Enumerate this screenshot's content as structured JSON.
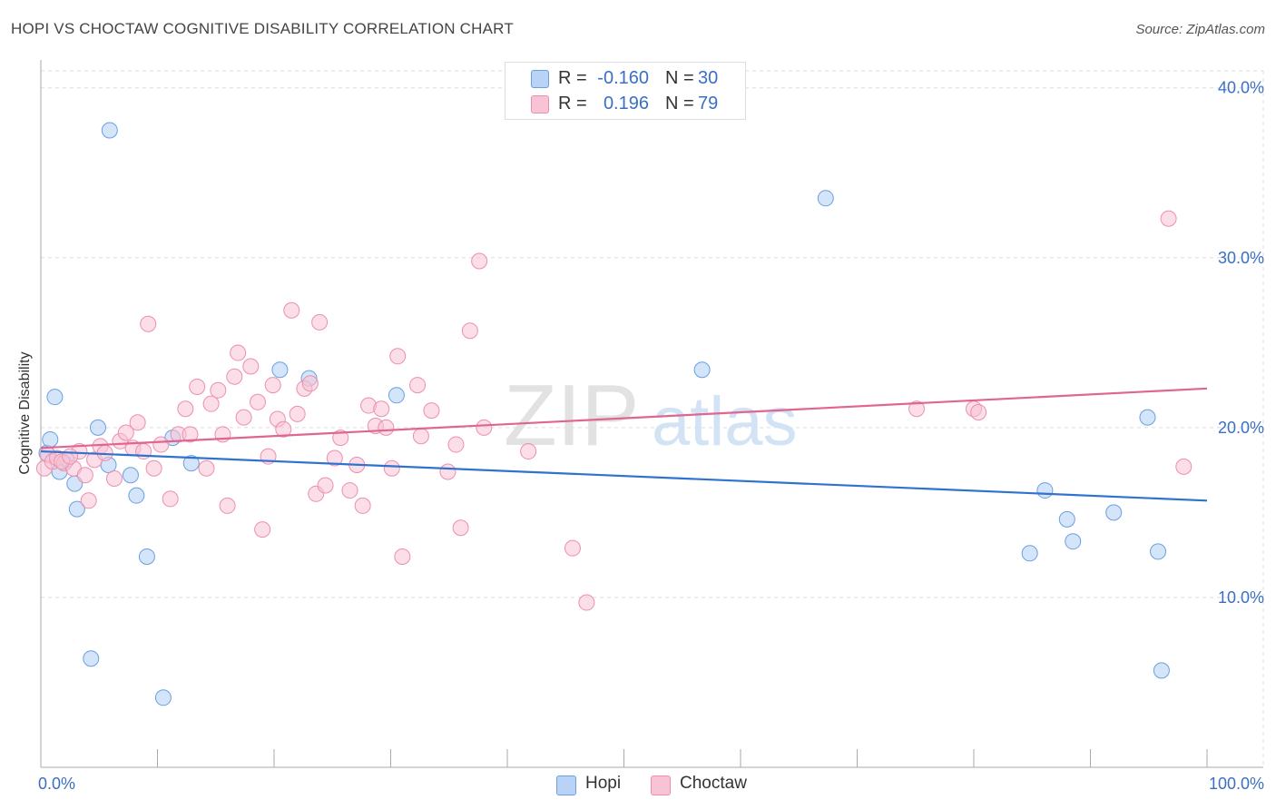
{
  "title": "HOPI VS CHOCTAW COGNITIVE DISABILITY CORRELATION CHART",
  "source": "Source: ZipAtlas.com",
  "watermark": {
    "zip": "ZIP",
    "atlas": "atlas"
  },
  "legend": {
    "rows": [
      {
        "r_label": "R =",
        "r_value": "-0.160",
        "n_label": "N =",
        "n_value": "30"
      },
      {
        "r_label": "R =",
        "r_value": "0.196",
        "n_label": "N =",
        "n_value": "79"
      }
    ]
  },
  "bottom_legend": {
    "hopi": "Hopi",
    "choctaw": "Choctaw"
  },
  "colors": {
    "hopi_fill": "#b8d3f5",
    "hopi_stroke": "#6a9fe0",
    "hopi_line": "#2f72d0",
    "choctaw_fill": "#f8c3d4",
    "choctaw_stroke": "#ec8fae",
    "choctaw_line": "#e0658f",
    "axis_label": "#3a6fc4",
    "grid": "#dddddd"
  },
  "chart_data": {
    "type": "scatter",
    "title": "HOPI VS CHOCTAW COGNITIVE DISABILITY CORRELATION CHART",
    "xlabel": "",
    "ylabel": "Cognitive Disability",
    "xlim": [
      0,
      100
    ],
    "ylim": [
      0,
      40.0
    ],
    "x_tick_labels": [
      "0.0%",
      "100.0%"
    ],
    "y_ticks": [
      10,
      20,
      30,
      40
    ],
    "y_tick_labels": [
      "10.0%",
      "20.0%",
      "30.0%",
      "40.0%"
    ],
    "grid": true,
    "series": [
      {
        "name": "Hopi",
        "R": -0.16,
        "N": 30,
        "trend": {
          "x": [
            0,
            100
          ],
          "y": [
            18.6,
            15.7
          ]
        },
        "points": [
          [
            0.5,
            18.5
          ],
          [
            0.8,
            19.3
          ],
          [
            1.2,
            21.8
          ],
          [
            1.6,
            17.4
          ],
          [
            2.2,
            18.1
          ],
          [
            2.9,
            16.7
          ],
          [
            3.1,
            15.2
          ],
          [
            4.3,
            6.4
          ],
          [
            4.9,
            20.0
          ],
          [
            5.8,
            17.8
          ],
          [
            7.7,
            17.2
          ],
          [
            8.2,
            16.0
          ],
          [
            9.1,
            12.4
          ],
          [
            10.5,
            4.1
          ],
          [
            11.3,
            19.4
          ],
          [
            12.9,
            17.9
          ],
          [
            5.9,
            37.5
          ],
          [
            20.5,
            23.4
          ],
          [
            23.0,
            22.9
          ],
          [
            30.5,
            21.9
          ],
          [
            56.7,
            23.4
          ],
          [
            67.3,
            33.5
          ],
          [
            84.8,
            12.6
          ],
          [
            86.1,
            16.3
          ],
          [
            88.0,
            14.6
          ],
          [
            88.5,
            13.3
          ],
          [
            92.0,
            15.0
          ],
          [
            94.9,
            20.6
          ],
          [
            95.8,
            12.7
          ],
          [
            96.1,
            5.7
          ]
        ]
      },
      {
        "name": "Choctaw",
        "R": 0.196,
        "N": 79,
        "trend": {
          "x": [
            0,
            100
          ],
          "y": [
            18.8,
            22.3
          ]
        },
        "points": [
          [
            0.3,
            17.6
          ],
          [
            0.6,
            18.4
          ],
          [
            1.0,
            18.0
          ],
          [
            1.4,
            18.2
          ],
          [
            2.0,
            17.9
          ],
          [
            2.8,
            17.6
          ],
          [
            3.3,
            18.6
          ],
          [
            3.8,
            17.2
          ],
          [
            4.1,
            15.7
          ],
          [
            4.6,
            18.1
          ],
          [
            5.1,
            18.9
          ],
          [
            5.5,
            18.5
          ],
          [
            6.3,
            17.0
          ],
          [
            6.8,
            19.2
          ],
          [
            7.3,
            19.7
          ],
          [
            7.9,
            18.8
          ],
          [
            8.3,
            20.3
          ],
          [
            8.8,
            18.6
          ],
          [
            9.2,
            26.1
          ],
          [
            9.7,
            17.6
          ],
          [
            10.3,
            19.0
          ],
          [
            11.1,
            15.8
          ],
          [
            11.8,
            19.6
          ],
          [
            12.4,
            21.1
          ],
          [
            12.8,
            19.6
          ],
          [
            13.4,
            22.4
          ],
          [
            14.2,
            17.6
          ],
          [
            14.6,
            21.4
          ],
          [
            15.2,
            22.2
          ],
          [
            15.6,
            19.6
          ],
          [
            16.0,
            15.4
          ],
          [
            16.6,
            23.0
          ],
          [
            16.9,
            24.4
          ],
          [
            17.4,
            20.6
          ],
          [
            18.0,
            23.6
          ],
          [
            18.6,
            21.5
          ],
          [
            19.0,
            14.0
          ],
          [
            19.5,
            18.3
          ],
          [
            19.9,
            22.5
          ],
          [
            20.3,
            20.5
          ],
          [
            20.8,
            19.9
          ],
          [
            21.5,
            26.9
          ],
          [
            22.0,
            20.8
          ],
          [
            22.6,
            22.3
          ],
          [
            23.1,
            22.6
          ],
          [
            23.6,
            16.1
          ],
          [
            23.9,
            26.2
          ],
          [
            24.4,
            16.6
          ],
          [
            25.2,
            18.2
          ],
          [
            25.7,
            19.4
          ],
          [
            26.5,
            16.3
          ],
          [
            27.1,
            17.8
          ],
          [
            27.6,
            15.4
          ],
          [
            28.1,
            21.3
          ],
          [
            28.7,
            20.1
          ],
          [
            29.2,
            21.1
          ],
          [
            29.6,
            20.0
          ],
          [
            30.1,
            17.6
          ],
          [
            30.6,
            24.2
          ],
          [
            31.0,
            12.4
          ],
          [
            32.3,
            22.5
          ],
          [
            32.6,
            19.5
          ],
          [
            33.5,
            21.0
          ],
          [
            34.9,
            17.4
          ],
          [
            35.6,
            19.0
          ],
          [
            36.0,
            14.1
          ],
          [
            36.8,
            25.7
          ],
          [
            37.6,
            29.8
          ],
          [
            38.0,
            20.0
          ],
          [
            41.8,
            18.6
          ],
          [
            45.6,
            12.9
          ],
          [
            46.8,
            9.7
          ],
          [
            75.1,
            21.1
          ],
          [
            80.0,
            21.1
          ],
          [
            80.4,
            20.9
          ],
          [
            96.7,
            32.3
          ],
          [
            98.0,
            17.7
          ],
          [
            1.8,
            18.0
          ],
          [
            2.5,
            18.3
          ]
        ]
      }
    ]
  }
}
